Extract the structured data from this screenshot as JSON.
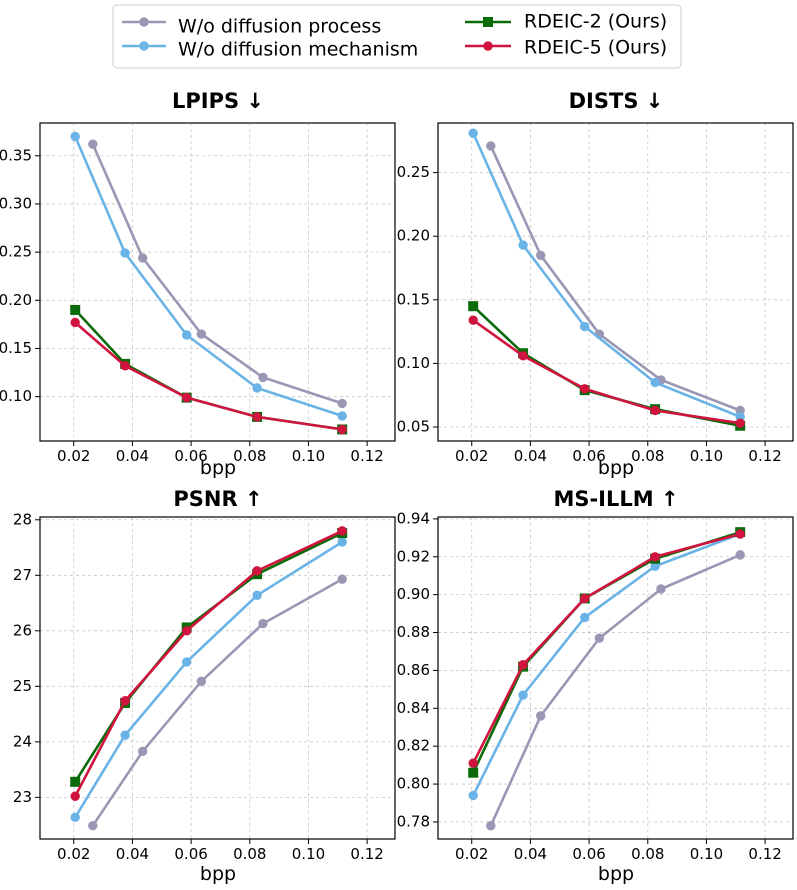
{
  "legend": {
    "entries": [
      {
        "series_index": 0,
        "label": "W/o diffusion process"
      },
      {
        "series_index": 1,
        "label": "W/o diffusion mechanism"
      },
      {
        "series_index": 2,
        "label": "RDEIC-2 (Ours)"
      },
      {
        "series_index": 3,
        "label": "RDEIC-5 (Ours)"
      }
    ]
  },
  "series_styles": [
    {
      "name": "W/o diffusion process",
      "color": "#9a97b4",
      "marker": "circle"
    },
    {
      "name": "W/o diffusion mechanism",
      "color": "#69b3e7",
      "marker": "circle"
    },
    {
      "name": "RDEIC-2 (Ours)",
      "color": "#0b6b0b",
      "marker": "square"
    },
    {
      "name": "RDEIC-5 (Ours)",
      "color": "#d0143f",
      "marker": "circle"
    }
  ],
  "chart_data": [
    {
      "type": "line",
      "title": "LPIPS ↓",
      "xlabel": "bpp",
      "ylabel": "",
      "xlim": [
        0.0085,
        0.1295
      ],
      "ylim": [
        0.054,
        0.384
      ],
      "xticks": [
        0.02,
        0.04,
        0.06,
        0.08,
        0.1,
        0.12
      ],
      "xtick_labels": [
        "0.02",
        "0.04",
        "0.06",
        "0.08",
        "0.10",
        "0.12"
      ],
      "yticks": [
        0.1,
        0.15,
        0.2,
        0.25,
        0.3,
        0.35
      ],
      "ytick_labels": [
        "0.10",
        "0.15",
        "0.20",
        "0.25",
        "0.30",
        "0.35"
      ],
      "series": [
        {
          "name": "W/o diffusion process",
          "x": [
            0.0265,
            0.0435,
            0.0635,
            0.0845,
            0.1115
          ],
          "y": [
            0.362,
            0.244,
            0.165,
            0.12,
            0.093
          ]
        },
        {
          "name": "W/o diffusion mechanism",
          "x": [
            0.0205,
            0.0375,
            0.0585,
            0.0825,
            0.1115
          ],
          "y": [
            0.37,
            0.249,
            0.164,
            0.109,
            0.08
          ]
        },
        {
          "name": "RDEIC-2 (Ours)",
          "x": [
            0.0205,
            0.0375,
            0.0585,
            0.0825,
            0.1115
          ],
          "y": [
            0.19,
            0.134,
            0.099,
            0.079,
            0.066
          ]
        },
        {
          "name": "RDEIC-5 (Ours)",
          "x": [
            0.0205,
            0.0375,
            0.0585,
            0.0825,
            0.1115
          ],
          "y": [
            0.177,
            0.132,
            0.099,
            0.079,
            0.066
          ]
        }
      ]
    },
    {
      "type": "line",
      "title": "DISTS ↓",
      "xlabel": "bpp",
      "ylabel": "",
      "xlim": [
        0.0085,
        0.1295
      ],
      "ylim": [
        0.039,
        0.289
      ],
      "xticks": [
        0.02,
        0.04,
        0.06,
        0.08,
        0.1,
        0.12
      ],
      "xtick_labels": [
        "0.02",
        "0.04",
        "0.06",
        "0.08",
        "0.10",
        "0.12"
      ],
      "yticks": [
        0.05,
        0.1,
        0.15,
        0.2,
        0.25
      ],
      "ytick_labels": [
        "0.05",
        "0.10",
        "0.15",
        "0.20",
        "0.25"
      ],
      "series": [
        {
          "name": "W/o diffusion process",
          "x": [
            0.0265,
            0.0435,
            0.0635,
            0.0845,
            0.1115
          ],
          "y": [
            0.271,
            0.185,
            0.123,
            0.087,
            0.063
          ]
        },
        {
          "name": "W/o diffusion mechanism",
          "x": [
            0.0205,
            0.0375,
            0.0585,
            0.0825,
            0.1115
          ],
          "y": [
            0.281,
            0.193,
            0.129,
            0.085,
            0.058
          ]
        },
        {
          "name": "RDEIC-2 (Ours)",
          "x": [
            0.0205,
            0.0375,
            0.0585,
            0.0825,
            0.1115
          ],
          "y": [
            0.145,
            0.108,
            0.079,
            0.064,
            0.051
          ]
        },
        {
          "name": "RDEIC-5 (Ours)",
          "x": [
            0.0205,
            0.0375,
            0.0585,
            0.0825,
            0.1115
          ],
          "y": [
            0.134,
            0.106,
            0.08,
            0.063,
            0.053
          ]
        }
      ]
    },
    {
      "type": "line",
      "title": "PSNR ↑",
      "xlabel": "bpp",
      "ylabel": "",
      "xlim": [
        0.0085,
        0.1295
      ],
      "ylim": [
        22.25,
        28.05
      ],
      "xticks": [
        0.02,
        0.04,
        0.06,
        0.08,
        0.1,
        0.12
      ],
      "xtick_labels": [
        "0.02",
        "0.04",
        "0.06",
        "0.08",
        "0.10",
        "0.12"
      ],
      "yticks": [
        23,
        24,
        25,
        26,
        27,
        28
      ],
      "ytick_labels": [
        "23",
        "24",
        "25",
        "26",
        "27",
        "28"
      ],
      "series": [
        {
          "name": "W/o diffusion process",
          "x": [
            0.0265,
            0.0435,
            0.0635,
            0.0845,
            0.1115
          ],
          "y": [
            22.49,
            23.83,
            25.09,
            26.13,
            26.93
          ]
        },
        {
          "name": "W/o diffusion mechanism",
          "x": [
            0.0205,
            0.0375,
            0.0585,
            0.0825,
            0.1115
          ],
          "y": [
            22.64,
            24.12,
            25.44,
            26.64,
            27.6
          ]
        },
        {
          "name": "RDEIC-2 (Ours)",
          "x": [
            0.0205,
            0.0375,
            0.0585,
            0.0825,
            0.1115
          ],
          "y": [
            23.28,
            24.7,
            26.06,
            27.02,
            27.76
          ]
        },
        {
          "name": "RDEIC-5 (Ours)",
          "x": [
            0.0205,
            0.0375,
            0.0585,
            0.0825,
            0.1115
          ],
          "y": [
            23.02,
            24.74,
            26.0,
            27.08,
            27.8
          ]
        }
      ]
    },
    {
      "type": "line",
      "title": "MS-ILLM ↑",
      "xlabel": "bpp",
      "ylabel": "",
      "xlim": [
        0.0085,
        0.1295
      ],
      "ylim": [
        0.771,
        0.941
      ],
      "xticks": [
        0.02,
        0.04,
        0.06,
        0.08,
        0.1,
        0.12
      ],
      "xtick_labels": [
        "0.02",
        "0.04",
        "0.06",
        "0.08",
        "0.10",
        "0.12"
      ],
      "yticks": [
        0.78,
        0.8,
        0.82,
        0.84,
        0.86,
        0.88,
        0.9,
        0.92,
        0.94
      ],
      "ytick_labels": [
        "0.78",
        "0.80",
        "0.82",
        "0.84",
        "0.86",
        "0.88",
        "0.90",
        "0.92",
        "0.94"
      ],
      "series": [
        {
          "name": "W/o diffusion process",
          "x": [
            0.0265,
            0.0435,
            0.0635,
            0.0845,
            0.1115
          ],
          "y": [
            0.778,
            0.836,
            0.877,
            0.903,
            0.921
          ]
        },
        {
          "name": "W/o diffusion mechanism",
          "x": [
            0.0205,
            0.0375,
            0.0585,
            0.0825,
            0.1115
          ],
          "y": [
            0.794,
            0.847,
            0.888,
            0.915,
            0.932
          ]
        },
        {
          "name": "RDEIC-2 (Ours)",
          "x": [
            0.0205,
            0.0375,
            0.0585,
            0.0825,
            0.1115
          ],
          "y": [
            0.806,
            0.862,
            0.898,
            0.919,
            0.933
          ]
        },
        {
          "name": "RDEIC-5 (Ours)",
          "x": [
            0.0205,
            0.0375,
            0.0585,
            0.0825,
            0.1115
          ],
          "y": [
            0.811,
            0.863,
            0.898,
            0.92,
            0.932
          ]
        }
      ]
    }
  ]
}
